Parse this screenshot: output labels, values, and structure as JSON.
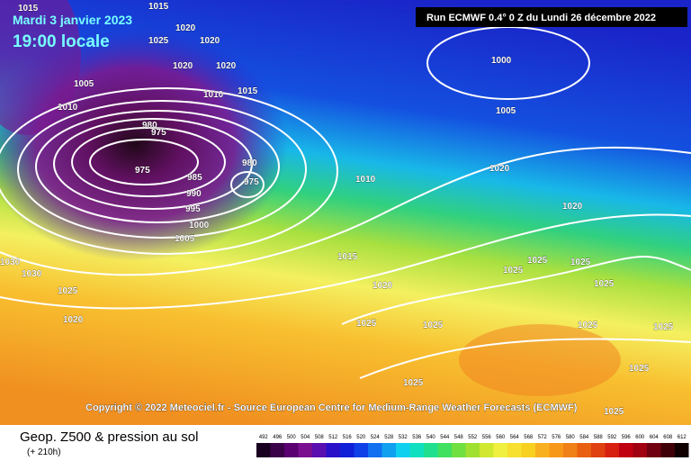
{
  "header": {
    "date": "Mardi 3 janvier 2023",
    "time": "19:00 locale",
    "run": "Run ECMWF 0.4° 0 Z du Lundi 26 décembre 2022"
  },
  "copyright": "Copyright © 2022 Meteociel.fr - Source European Centre for Medium-Range Weather Forecasts (ECMWF)",
  "isobar_labels": [
    1015,
    1015,
    1020,
    1025,
    1020,
    1020,
    1020,
    1005,
    1010,
    1010,
    1015,
    1000,
    1005,
    980,
    975,
    975,
    985,
    990,
    995,
    1000,
    1005,
    980,
    975,
    1010,
    1020,
    1020,
    1015,
    1020,
    1025,
    1025,
    1025,
    1025,
    1030,
    1030,
    1025,
    1020,
    1025,
    1025,
    1025,
    1025,
    1025,
    1025,
    1025
  ],
  "footer": {
    "title": "Geop. Z500 & pression au sol",
    "lead": "(+ 210h)"
  },
  "scale": [
    492,
    496,
    500,
    504,
    508,
    512,
    516,
    520,
    524,
    528,
    532,
    536,
    540,
    544,
    548,
    552,
    556,
    560,
    564,
    568,
    572,
    576,
    580,
    584,
    588,
    592,
    596,
    600,
    604,
    608,
    612
  ]
}
